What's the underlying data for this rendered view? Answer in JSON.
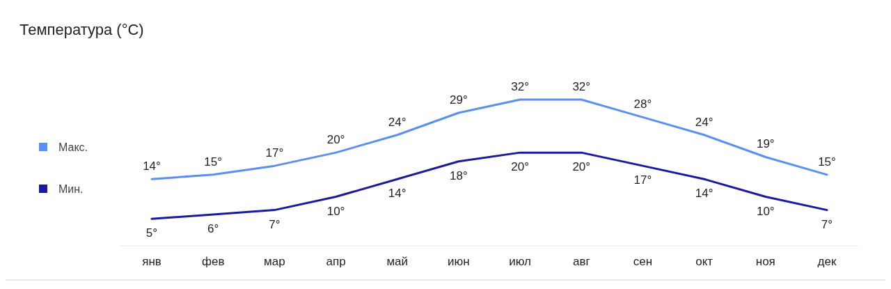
{
  "chart_data": {
    "type": "line",
    "title": "Температура (°C)",
    "categories": [
      "янв",
      "фев",
      "мар",
      "апр",
      "май",
      "июн",
      "июл",
      "авг",
      "сен",
      "окт",
      "ноя",
      "дек"
    ],
    "series": [
      {
        "name": "Макс.",
        "color": "#5b8ff0",
        "values": [
          14,
          15,
          17,
          20,
          24,
          29,
          32,
          32,
          28,
          24,
          19,
          15
        ],
        "value_labels": [
          "14°",
          "15°",
          "17°",
          "20°",
          "24°",
          "29°",
          "32°",
          "32°",
          "28°",
          "24°",
          "19°",
          "15°"
        ]
      },
      {
        "name": "Мин.",
        "color": "#1c1a9c",
        "values": [
          5,
          6,
          7,
          10,
          14,
          18,
          20,
          20,
          17,
          14,
          10,
          7
        ],
        "value_labels": [
          "5°",
          "6°",
          "7°",
          "10°",
          "14°",
          "18°",
          "20°",
          "20°",
          "17°",
          "14°",
          "10°",
          "7°"
        ]
      }
    ],
    "legend": "left",
    "marker": "none"
  }
}
